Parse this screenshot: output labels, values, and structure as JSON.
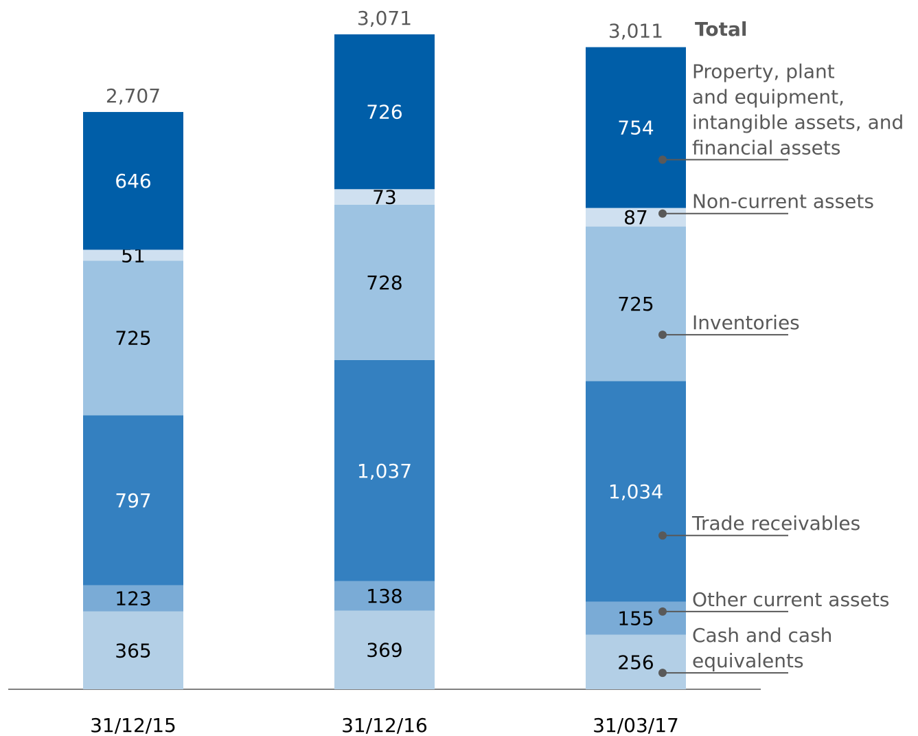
{
  "chart_data": {
    "type": "stacked_bar",
    "categories": [
      "31/12/15",
      "31/12/16",
      "31/03/17"
    ],
    "series": [
      {
        "name": "Cash and cash\nequivalents",
        "color": "#b3cfe6",
        "label_color": "#000000",
        "values": [
          365,
          369,
          256
        ]
      },
      {
        "name": "Other current assets",
        "color": "#7aabd6",
        "label_color": "#000000",
        "values": [
          123,
          138,
          155
        ]
      },
      {
        "name": "Trade receivables",
        "color": "#3480c0",
        "label_color": "#ffffff",
        "values": [
          797,
          1037,
          1034
        ],
        "value_labels": [
          "797",
          "1,037",
          "1,034"
        ]
      },
      {
        "name": "Inventories",
        "color": "#9dc3e2",
        "label_color": "#000000",
        "values": [
          725,
          728,
          725
        ]
      },
      {
        "name": "Non-current assets",
        "color": "#cfe0f0",
        "label_color": "#000000",
        "values": [
          51,
          73,
          87
        ]
      },
      {
        "name": "Property, plant\nand equipment,\nintangible assets, and\nfinancial assets",
        "color": "#005ea8",
        "label_color": "#ffffff",
        "values": [
          646,
          726,
          754
        ]
      }
    ],
    "total_name": "Total",
    "totals": [
      2707,
      3071,
      3011
    ],
    "total_labels": [
      "2,707",
      "3,071",
      "3,011"
    ]
  }
}
